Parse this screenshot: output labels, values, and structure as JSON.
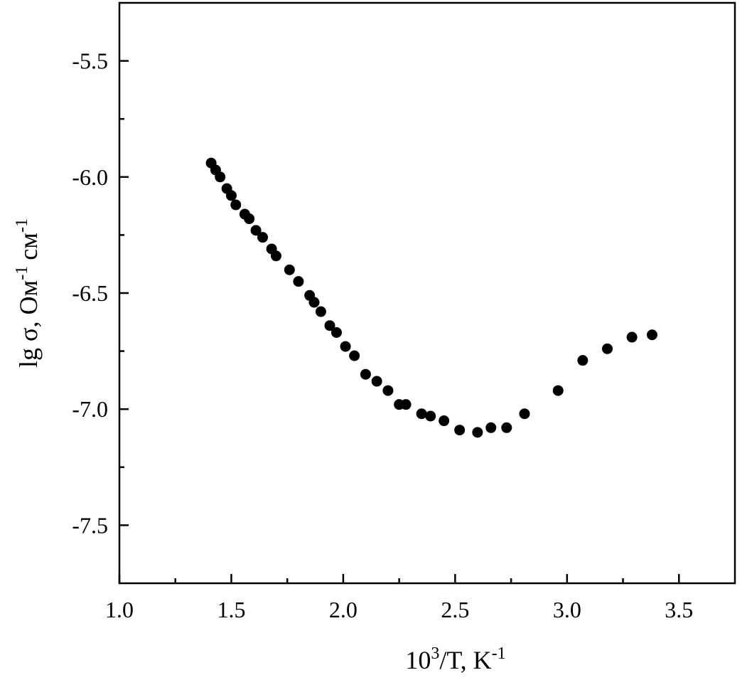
{
  "chart_data": {
    "type": "scatter",
    "title": "",
    "xlabel": {
      "base": "10",
      "sup1": "3",
      "mid": "/T, K",
      "sup2": "-1"
    },
    "ylabel": {
      "base": "lg σ, Ом",
      "sup1": "-1",
      "mid": "см",
      "sup2": "-1"
    },
    "xlim": [
      1.0,
      3.75
    ],
    "ylim": [
      -7.75,
      -5.25
    ],
    "xticks": [
      {
        "value": 1.0,
        "label": "1.0"
      },
      {
        "value": 1.5,
        "label": "1.5"
      },
      {
        "value": 2.0,
        "label": "2.0"
      },
      {
        "value": 2.5,
        "label": "2.5"
      },
      {
        "value": 3.0,
        "label": "3.0"
      },
      {
        "value": 3.5,
        "label": "3.5"
      }
    ],
    "xminor": [
      1.25,
      1.75,
      2.25,
      2.75,
      3.25
    ],
    "yticks": [
      {
        "value": -7.5,
        "label": "-7.5"
      },
      {
        "value": -7.0,
        "label": "-7.0"
      },
      {
        "value": -6.5,
        "label": "-6.5"
      },
      {
        "value": -6.0,
        "label": "-6.0"
      },
      {
        "value": -5.5,
        "label": "-5.5"
      }
    ],
    "yminor": [
      -7.25,
      -6.75,
      -6.25,
      -5.75
    ],
    "grid": false,
    "marker_color": "#000000",
    "series": [
      {
        "points": [
          [
            1.41,
            -5.94
          ],
          [
            1.43,
            -5.97
          ],
          [
            1.45,
            -6.0
          ],
          [
            1.48,
            -6.05
          ],
          [
            1.5,
            -6.08
          ],
          [
            1.52,
            -6.12
          ],
          [
            1.56,
            -6.16
          ],
          [
            1.58,
            -6.18
          ],
          [
            1.61,
            -6.23
          ],
          [
            1.64,
            -6.26
          ],
          [
            1.68,
            -6.31
          ],
          [
            1.7,
            -6.34
          ],
          [
            1.76,
            -6.4
          ],
          [
            1.8,
            -6.45
          ],
          [
            1.85,
            -6.51
          ],
          [
            1.87,
            -6.54
          ],
          [
            1.9,
            -6.58
          ],
          [
            1.94,
            -6.64
          ],
          [
            1.97,
            -6.67
          ],
          [
            2.01,
            -6.73
          ],
          [
            2.05,
            -6.77
          ],
          [
            2.1,
            -6.85
          ],
          [
            2.15,
            -6.88
          ],
          [
            2.2,
            -6.92
          ],
          [
            2.25,
            -6.98
          ],
          [
            2.28,
            -6.98
          ],
          [
            2.35,
            -7.02
          ],
          [
            2.39,
            -7.03
          ],
          [
            2.45,
            -7.05
          ],
          [
            2.52,
            -7.09
          ],
          [
            2.6,
            -7.1
          ],
          [
            2.66,
            -7.08
          ],
          [
            2.73,
            -7.08
          ],
          [
            2.81,
            -7.02
          ],
          [
            2.96,
            -6.92
          ],
          [
            3.07,
            -6.79
          ],
          [
            3.18,
            -6.74
          ],
          [
            3.29,
            -6.69
          ],
          [
            3.38,
            -6.68
          ]
        ]
      }
    ]
  }
}
